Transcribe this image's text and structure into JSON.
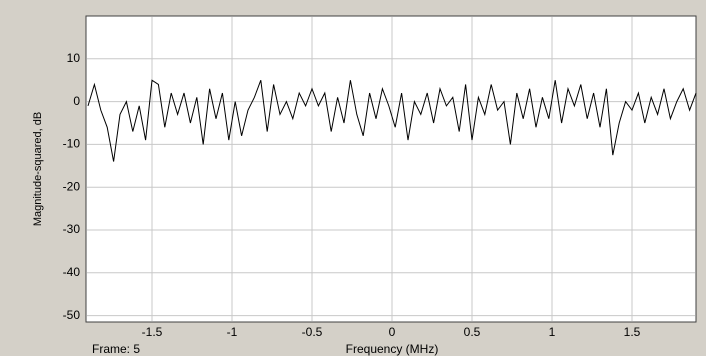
{
  "chart_data": {
    "type": "line",
    "y_label": "Magnitude-squared, dB",
    "x_label": "Frequency (MHz)",
    "frame_label": "Frame: 5",
    "x": [
      -1.9,
      -1.86,
      -1.82,
      -1.78,
      -1.74,
      -1.7,
      -1.66,
      -1.62,
      -1.58,
      -1.54,
      -1.5,
      -1.46,
      -1.42,
      -1.38,
      -1.34,
      -1.3,
      -1.26,
      -1.22,
      -1.18,
      -1.14,
      -1.1,
      -1.06,
      -1.02,
      -0.98,
      -0.94,
      -0.9,
      -0.86,
      -0.82,
      -0.78,
      -0.74,
      -0.7,
      -0.66,
      -0.62,
      -0.58,
      -0.54,
      -0.5,
      -0.46,
      -0.42,
      -0.38,
      -0.34,
      -0.3,
      -0.26,
      -0.22,
      -0.18,
      -0.14,
      -0.1,
      -0.06,
      -0.02,
      0.02,
      0.06,
      0.1,
      0.14,
      0.18,
      0.22,
      0.26,
      0.3,
      0.34,
      0.38,
      0.42,
      0.46,
      0.5,
      0.54,
      0.58,
      0.62,
      0.66,
      0.7,
      0.74,
      0.78,
      0.82,
      0.86,
      0.9,
      0.94,
      0.98,
      1.02,
      1.06,
      1.1,
      1.14,
      1.18,
      1.22,
      1.26,
      1.3,
      1.34,
      1.38,
      1.42,
      1.46,
      1.5,
      1.54,
      1.58,
      1.62,
      1.66,
      1.7,
      1.74,
      1.78,
      1.82,
      1.86,
      1.9
    ],
    "values": [
      -1,
      4,
      -2,
      -6,
      -14,
      -3,
      0,
      -7,
      -1,
      -9,
      5,
      4,
      -6,
      2,
      -3,
      2,
      -5,
      1,
      -10,
      3,
      -4,
      2,
      -9,
      0,
      -8,
      -2,
      1,
      5,
      -7,
      4,
      -3,
      0,
      -4,
      2,
      -1,
      3,
      -1,
      2,
      -7,
      1,
      -5,
      5,
      -3,
      -8,
      2,
      -4,
      3,
      -1,
      -6,
      2,
      -9,
      0,
      -3,
      2,
      -5,
      3,
      -1,
      1,
      -7,
      4,
      -9,
      1,
      -3,
      4,
      -2,
      0,
      -10,
      2,
      -4,
      3,
      -6,
      1,
      -4,
      5,
      -5,
      3,
      -1,
      4,
      -4,
      2,
      -6,
      3,
      -12.5,
      -5,
      0,
      -2,
      2,
      -5,
      1,
      -3,
      3,
      -4,
      0,
      3,
      -2,
      2
    ],
    "color": "#000000",
    "xlim": [
      -1.9125,
      1.9
    ],
    "xticks": [
      -1.5,
      -1,
      -0.5,
      0,
      0.5,
      1,
      1.5
    ],
    "ylim": [
      -51.5,
      20
    ],
    "yticks": [
      10,
      0,
      -10,
      -20,
      -30,
      -40,
      -50
    ],
    "grid": true
  }
}
